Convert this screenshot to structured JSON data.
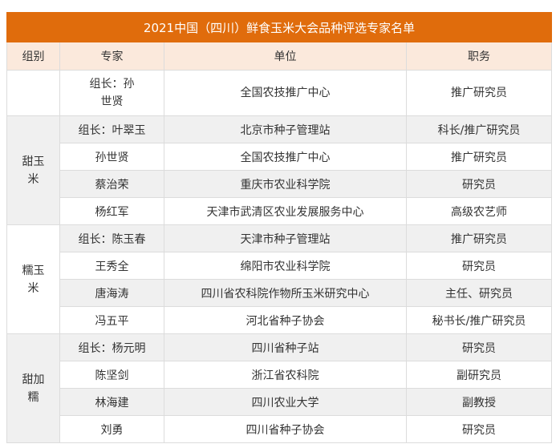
{
  "title": "2021中国（四川）鲜食玉米大会品种评选专家名单",
  "headers": [
    "组别",
    "专家",
    "单位",
    "职务"
  ],
  "colors": {
    "title_bg": "#e06c0c",
    "header_bg": "#fbe9dc",
    "stripe": "#f0f0f0"
  },
  "leader": {
    "group": "",
    "expert": "组长：孙世贤",
    "unit": "全国农技推广中心",
    "title": "推广研究员"
  },
  "groups": [
    {
      "name": "甜玉米",
      "members": [
        {
          "expert": "组长：叶翠玉",
          "unit": "北京市种子管理站",
          "title": "科长/推广研究员"
        },
        {
          "expert": "孙世贤",
          "unit": "全国农技推广中心",
          "title": "推广研究员"
        },
        {
          "expert": "蔡治荣",
          "unit": "重庆市农业科学院",
          "title": "研究员"
        },
        {
          "expert": "杨红军",
          "unit": "天津市武清区农业发展服务中心",
          "title": "高级农艺师"
        }
      ]
    },
    {
      "name": "糯玉米",
      "members": [
        {
          "expert": "组长：陈玉春",
          "unit": "天津市种子管理站",
          "title": "推广研究员"
        },
        {
          "expert": "王秀全",
          "unit": "绵阳市农业科学院",
          "title": "研究员"
        },
        {
          "expert": "唐海涛",
          "unit": "四川省农科院作物所玉米研究中心",
          "title": "主任、研究员"
        },
        {
          "expert": "冯五平",
          "unit": "河北省种子协会",
          "title": "秘书长/推广研究员"
        }
      ]
    },
    {
      "name": "甜加糯",
      "members": [
        {
          "expert": "组长：杨元明",
          "unit": "四川省种子站",
          "title": "研究员"
        },
        {
          "expert": "陈坚剑",
          "unit": "浙江省农科院",
          "title": "副研究员"
        },
        {
          "expert": "林海建",
          "unit": "四川农业大学",
          "title": "副教授"
        },
        {
          "expert": "刘勇",
          "unit": "四川省种子协会",
          "title": "研究员"
        }
      ]
    }
  ]
}
